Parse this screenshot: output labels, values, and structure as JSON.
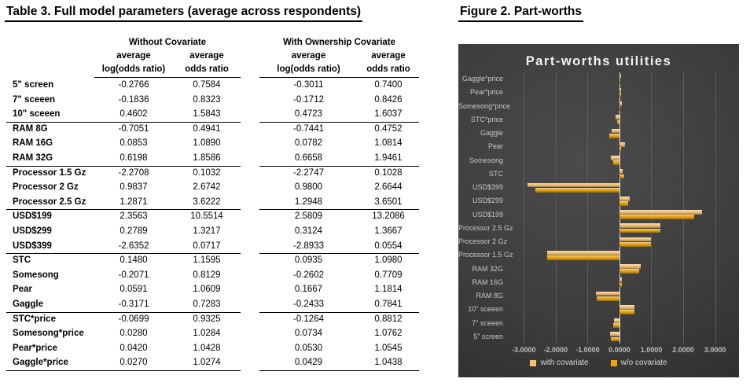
{
  "table": {
    "title": "Table 3. Full model parameters (average across respondents)",
    "col_groups": [
      "Without Covariate",
      "With Ownership Covariate"
    ],
    "subheader_average": "average",
    "subheader_log": "log(odds ratio)",
    "subheader_odds": "odds ratio",
    "groups": [
      {
        "rows": [
          {
            "label": "5\" screen",
            "wo_log": "-0.2766",
            "wo_odds": "0.7584",
            "w_log": "-0.3011",
            "w_odds": "0.7400"
          },
          {
            "label": "7\" sceeen",
            "wo_log": "-0.1836",
            "wo_odds": "0.8323",
            "w_log": "-0.1712",
            "w_odds": "0.8426"
          },
          {
            "label": "10\" sceeen",
            "wo_log": "0.4602",
            "wo_odds": "1.5843",
            "w_log": "0.4723",
            "w_odds": "1.6037"
          }
        ]
      },
      {
        "rows": [
          {
            "label": "RAM 8G",
            "wo_log": "-0.7051",
            "wo_odds": "0.4941",
            "w_log": "-0.7441",
            "w_odds": "0.4752"
          },
          {
            "label": "RAM 16G",
            "wo_log": "0.0853",
            "wo_odds": "1.0890",
            "w_log": "0.0782",
            "w_odds": "1.0814"
          },
          {
            "label": "RAM 32G",
            "wo_log": "0.6198",
            "wo_odds": "1.8586",
            "w_log": "0.6658",
            "w_odds": "1.9461"
          }
        ]
      },
      {
        "rows": [
          {
            "label": "Processor 1.5 Gz",
            "wo_log": "-2.2708",
            "wo_odds": "0.1032",
            "w_log": "-2.2747",
            "w_odds": "0.1028"
          },
          {
            "label": "Processor 2 Gz",
            "wo_log": "0.9837",
            "wo_odds": "2.6742",
            "w_log": "0.9800",
            "w_odds": "2.6644"
          },
          {
            "label": "Processor 2.5 Gz",
            "wo_log": "1.2871",
            "wo_odds": "3.6222",
            "w_log": "1.2948",
            "w_odds": "3.6501"
          }
        ]
      },
      {
        "rows": [
          {
            "label": "USD$199",
            "wo_log": "2.3563",
            "wo_odds": "10.5514",
            "w_log": "2.5809",
            "w_odds": "13.2086"
          },
          {
            "label": "USD$299",
            "wo_log": "0.2789",
            "wo_odds": "1.3217",
            "w_log": "0.3124",
            "w_odds": "1.3667"
          },
          {
            "label": "USD$399",
            "wo_log": "-2.6352",
            "wo_odds": "0.0717",
            "w_log": "-2.8933",
            "w_odds": "0.0554"
          }
        ]
      },
      {
        "rows": [
          {
            "label": "STC",
            "wo_log": "0.1480",
            "wo_odds": "1.1595",
            "w_log": "0.0935",
            "w_odds": "1.0980"
          },
          {
            "label": "Somesong",
            "wo_log": "-0.2071",
            "wo_odds": "0.8129",
            "w_log": "-0.2602",
            "w_odds": "0.7709"
          },
          {
            "label": "Pear",
            "wo_log": "0.0591",
            "wo_odds": "1.0609",
            "w_log": "0.1667",
            "w_odds": "1.1814"
          },
          {
            "label": "Gaggle",
            "wo_log": "-0.3171",
            "wo_odds": "0.7283",
            "w_log": "-0.2433",
            "w_odds": "0.7841"
          }
        ]
      },
      {
        "rows": [
          {
            "label": "STC*price",
            "wo_log": "-0.0699",
            "wo_odds": "0.9325",
            "w_log": "-0.1264",
            "w_odds": "0.8812"
          },
          {
            "label": "Somesong*price",
            "wo_log": "0.0280",
            "wo_odds": "1.0284",
            "w_log": "0.0734",
            "w_odds": "1.0762"
          },
          {
            "label": "Pear*price",
            "wo_log": "0.0420",
            "wo_odds": "1.0428",
            "w_log": "0.0530",
            "w_odds": "1.0545"
          },
          {
            "label": "Gaggle*price",
            "wo_log": "0.0270",
            "wo_odds": "1.0274",
            "w_log": "0.0429",
            "w_odds": "1.0438"
          }
        ]
      }
    ]
  },
  "figure": {
    "title": "Figure 2. Part-worths"
  },
  "chart_data": {
    "type": "bar",
    "orientation": "horizontal",
    "title": "Part-worths utilities",
    "xlabel": "",
    "ylabel": "",
    "grid": true,
    "legend_position": "bottom",
    "background": "dark",
    "categories_top_to_bottom": [
      "Gaggle*price",
      "Pear*price",
      "Somesong*price",
      "STC*price",
      "Gaggle",
      "Pear",
      "Somesong",
      "STC",
      "USD$399",
      "USD$299",
      "USD$199",
      "Processor 2.5 Gz",
      "Processor 2 Gz",
      "Processor 1.5 Gz",
      "RAM 32G",
      "RAM 16G",
      "RAM 8G",
      "10\" sceeen",
      "7\" sceeen",
      "5\" screen"
    ],
    "series": [
      {
        "name": "with covariate",
        "color": "#f0c177",
        "values": [
          0.0429,
          0.053,
          0.0734,
          -0.1264,
          -0.2433,
          0.1667,
          -0.2602,
          0.0935,
          -2.8933,
          0.3124,
          2.5809,
          1.2948,
          0.98,
          -2.2747,
          0.6658,
          0.0782,
          -0.7441,
          0.4723,
          -0.1712,
          -0.3011
        ]
      },
      {
        "name": "w/o covariate",
        "color": "#e9a412",
        "values": [
          0.027,
          0.042,
          0.028,
          -0.0699,
          -0.3171,
          0.0591,
          -0.2071,
          0.148,
          -2.6352,
          0.2789,
          2.3563,
          1.2871,
          0.9837,
          -2.2708,
          0.6198,
          0.0853,
          -0.7051,
          0.4602,
          -0.1836,
          -0.2766
        ]
      }
    ],
    "x_ticks": [
      "-3.0000",
      "-2.0000",
      "-1.0000",
      "0.0000",
      "1.0000",
      "2.0000",
      "3.0000"
    ],
    "x_tick_values": [
      -3,
      -2,
      -1,
      0,
      1,
      2,
      3
    ],
    "xlim_render": [
      -3.45,
      3.75
    ]
  }
}
